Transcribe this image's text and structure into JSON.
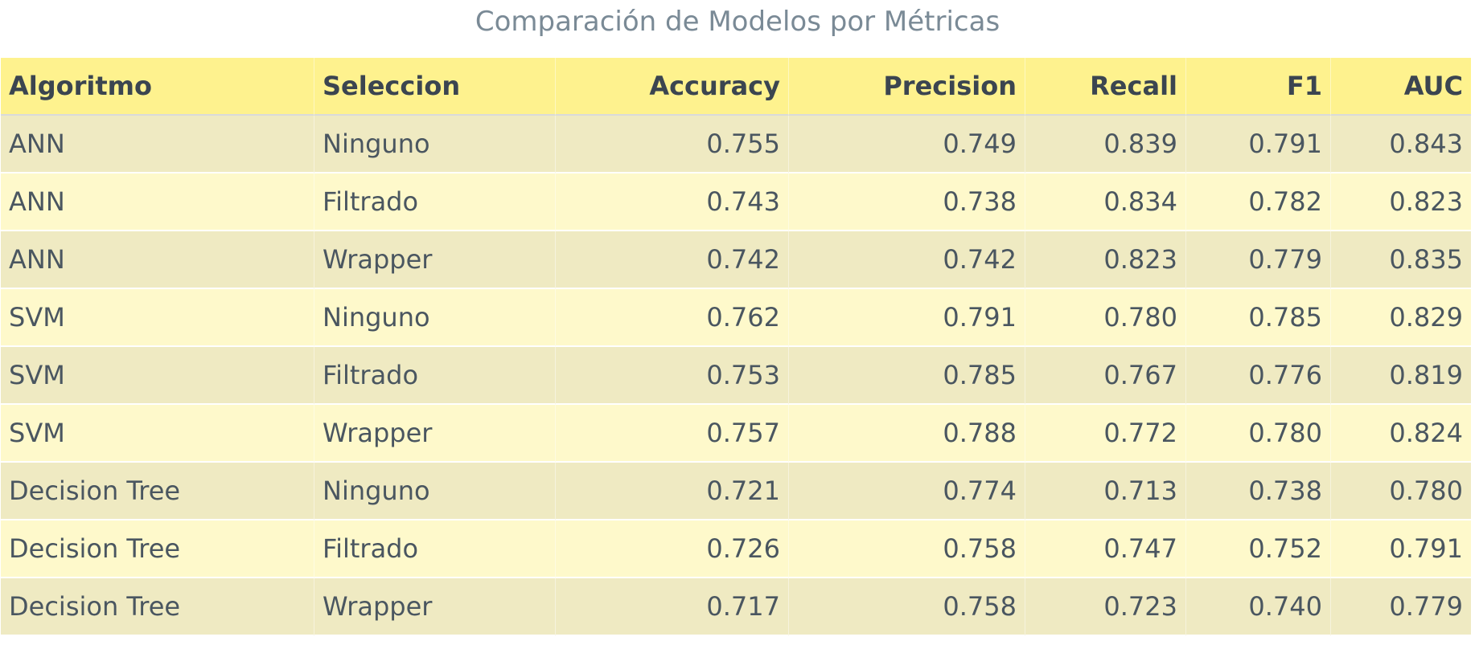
{
  "chart_data": {
    "type": "table",
    "title": "Comparación de Modelos por Métricas",
    "columns": [
      "Algoritmo",
      "Seleccion",
      "Accuracy",
      "Precision",
      "Recall",
      "F1",
      "AUC"
    ],
    "rows": [
      [
        "ANN",
        "Ninguno",
        "0.755",
        "0.749",
        "0.839",
        "0.791",
        "0.843"
      ],
      [
        "ANN",
        "Filtrado",
        "0.743",
        "0.738",
        "0.834",
        "0.782",
        "0.823"
      ],
      [
        "ANN",
        "Wrapper",
        "0.742",
        "0.742",
        "0.823",
        "0.779",
        "0.835"
      ],
      [
        "SVM",
        "Ninguno",
        "0.762",
        "0.791",
        "0.780",
        "0.785",
        "0.829"
      ],
      [
        "SVM",
        "Filtrado",
        "0.753",
        "0.785",
        "0.767",
        "0.776",
        "0.819"
      ],
      [
        "SVM",
        "Wrapper",
        "0.757",
        "0.788",
        "0.772",
        "0.780",
        "0.824"
      ],
      [
        "Decision Tree",
        "Ninguno",
        "0.721",
        "0.774",
        "0.713",
        "0.738",
        "0.780"
      ],
      [
        "Decision Tree",
        "Filtrado",
        "0.726",
        "0.758",
        "0.747",
        "0.752",
        "0.791"
      ],
      [
        "Decision Tree",
        "Wrapper",
        "0.717",
        "0.758",
        "0.723",
        "0.740",
        "0.779"
      ]
    ],
    "colors": {
      "header_fill": "#fef28e",
      "row_fill_odd": "#efeac2",
      "row_fill_even": "#fef9cb",
      "title_color": "#7a8a96",
      "text_color": "#4a5660"
    }
  }
}
